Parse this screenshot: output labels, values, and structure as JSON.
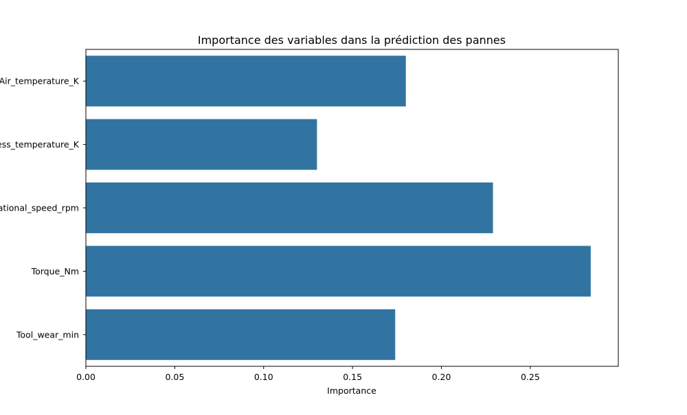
{
  "chart_data": {
    "type": "bar",
    "orientation": "horizontal",
    "title": "Importance des variables dans la prédiction des pannes",
    "xlabel": "Importance",
    "ylabel": "",
    "categories": [
      "Air_temperature_K",
      "Process_temperature_K",
      "Rotational_speed_rpm",
      "Torque_Nm",
      "Tool_wear_min"
    ],
    "values": [
      0.18,
      0.13,
      0.229,
      0.284,
      0.174
    ],
    "xlim": [
      0,
      0.2995
    ],
    "xticks": [
      0.0,
      0.05,
      0.1,
      0.15,
      0.2,
      0.25
    ],
    "xtick_labels": [
      "0.00",
      "0.05",
      "0.10",
      "0.15",
      "0.20",
      "0.25"
    ],
    "bar_color": "#3274a1",
    "grid": false,
    "legend": "none"
  }
}
